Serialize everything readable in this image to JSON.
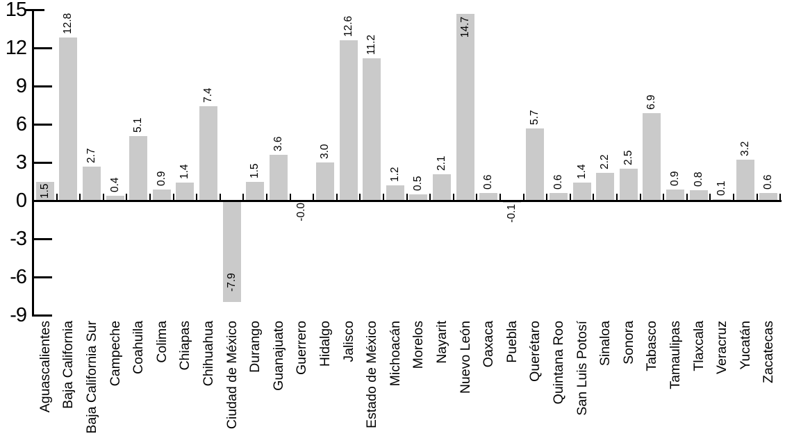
{
  "chart_data": {
    "type": "bar",
    "title": "",
    "xlabel": "",
    "ylabel": "",
    "categories": [
      "Aguascalientes",
      "Baja California",
      "Baja California Sur",
      "Campeche",
      "Coahuila",
      "Colima",
      "Chiapas",
      "Chihuahua",
      "Ciudad de México",
      "Durango",
      "Guanajuato",
      "Guerrero",
      "Hidalgo",
      "Jalisco",
      "Estado de México",
      "Michoacán",
      "Morelos",
      "Nayarit",
      "Nuevo León",
      "Oaxaca",
      "Puebla",
      "Querétaro",
      "Quintana Roo",
      "San Luis Potosí",
      "Sinaloa",
      "Sonora",
      "Tabasco",
      "Tamaulipas",
      "Tlaxcala",
      "Veracruz",
      "Yucatán",
      "Zacatecas"
    ],
    "values": [
      1.5,
      12.8,
      2.7,
      0.4,
      5.1,
      0.9,
      1.4,
      7.4,
      -7.9,
      1.5,
      3.6,
      -0.0,
      3.0,
      12.6,
      11.2,
      1.2,
      0.5,
      2.1,
      14.7,
      0.6,
      -0.1,
      5.7,
      0.6,
      1.4,
      2.2,
      2.5,
      6.9,
      0.9,
      0.8,
      0.1,
      3.2,
      0.6
    ],
    "value_labels": [
      "1.5",
      "12.8",
      "2.7",
      "0.4",
      "5.1",
      "0.9",
      "1.4",
      "7.4",
      "-7.9",
      "1.5",
      "3.6",
      "-0.0",
      "3.0",
      "12.6",
      "11.2",
      "1.2",
      "0.5",
      "2.1",
      "14.7",
      "0.6",
      "-0.1",
      "5.7",
      "0.6",
      "1.4",
      "2.2",
      "2.5",
      "6.9",
      "0.9",
      "0.8",
      "0.1",
      "3.2",
      "0.6"
    ],
    "label_placement": [
      "inside-base",
      "above",
      "above",
      "above",
      "above",
      "above",
      "above",
      "above",
      "inside-bottom",
      "above",
      "above",
      "below",
      "above",
      "above",
      "above",
      "above",
      "above",
      "above",
      "inside-top",
      "above",
      "below",
      "above",
      "above",
      "above",
      "above",
      "above",
      "above",
      "above",
      "above",
      "above",
      "above",
      "above"
    ],
    "ylim": [
      -9,
      15
    ],
    "yticks": [
      15,
      12,
      9,
      6,
      3,
      0,
      -3,
      -6,
      -9
    ],
    "ytick_labels": [
      "15",
      "12",
      "9",
      "6",
      "3",
      "0",
      "-3",
      "-6",
      "-9"
    ],
    "grid": false,
    "legend": "none",
    "bar_color": "#cacaca",
    "axis_color": "#000000",
    "text_color": "#000000"
  }
}
